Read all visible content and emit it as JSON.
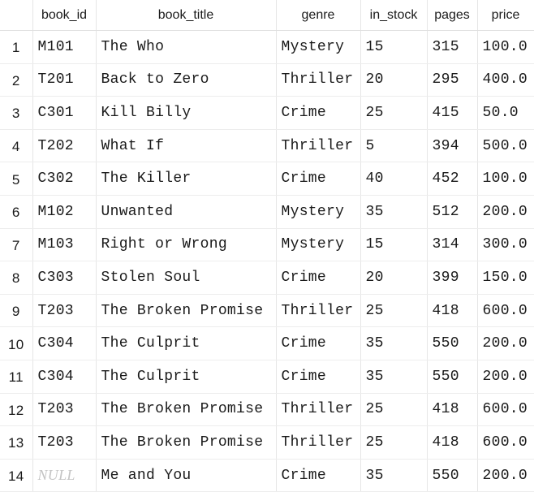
{
  "grid": {
    "columns": [
      "book_id",
      "book_title",
      "genre",
      "in_stock",
      "pages",
      "price"
    ],
    "null_label": "NULL",
    "rows": [
      {
        "n": "1",
        "book_id": "M101",
        "book_title": "The Who",
        "genre": "Mystery",
        "in_stock": "15",
        "pages": "315",
        "price": "100.0"
      },
      {
        "n": "2",
        "book_id": "T201",
        "book_title": "Back to Zero",
        "genre": "Thriller",
        "in_stock": "20",
        "pages": "295",
        "price": "400.0"
      },
      {
        "n": "3",
        "book_id": "C301",
        "book_title": "Kill Billy",
        "genre": "Crime",
        "in_stock": "25",
        "pages": "415",
        "price": "50.0"
      },
      {
        "n": "4",
        "book_id": "T202",
        "book_title": "What If",
        "genre": "Thriller",
        "in_stock": "5",
        "pages": "394",
        "price": "500.0"
      },
      {
        "n": "5",
        "book_id": "C302",
        "book_title": "The Killer",
        "genre": "Crime",
        "in_stock": "40",
        "pages": "452",
        "price": "100.0"
      },
      {
        "n": "6",
        "book_id": "M102",
        "book_title": "Unwanted",
        "genre": "Mystery",
        "in_stock": "35",
        "pages": "512",
        "price": "200.0"
      },
      {
        "n": "7",
        "book_id": "M103",
        "book_title": "Right or Wrong",
        "genre": "Mystery",
        "in_stock": "15",
        "pages": "314",
        "price": "300.0"
      },
      {
        "n": "8",
        "book_id": "C303",
        "book_title": "Stolen Soul",
        "genre": "Crime",
        "in_stock": "20",
        "pages": "399",
        "price": "150.0"
      },
      {
        "n": "9",
        "book_id": "T203",
        "book_title": "The Broken Promise",
        "genre": "Thriller",
        "in_stock": "25",
        "pages": "418",
        "price": "600.0"
      },
      {
        "n": "10",
        "book_id": "C304",
        "book_title": "The Culprit",
        "genre": "Crime",
        "in_stock": "35",
        "pages": "550",
        "price": "200.0"
      },
      {
        "n": "11",
        "book_id": "C304",
        "book_title": "The Culprit",
        "genre": "Crime",
        "in_stock": "35",
        "pages": "550",
        "price": "200.0"
      },
      {
        "n": "12",
        "book_id": "T203",
        "book_title": "The Broken Promise",
        "genre": "Thriller",
        "in_stock": "25",
        "pages": "418",
        "price": "600.0"
      },
      {
        "n": "13",
        "book_id": "T203",
        "book_title": "The Broken Promise",
        "genre": "Thriller",
        "in_stock": "25",
        "pages": "418",
        "price": "600.0"
      },
      {
        "n": "14",
        "book_id": null,
        "book_title": "Me and You",
        "genre": "Crime",
        "in_stock": "35",
        "pages": "550",
        "price": "200.0"
      }
    ]
  }
}
